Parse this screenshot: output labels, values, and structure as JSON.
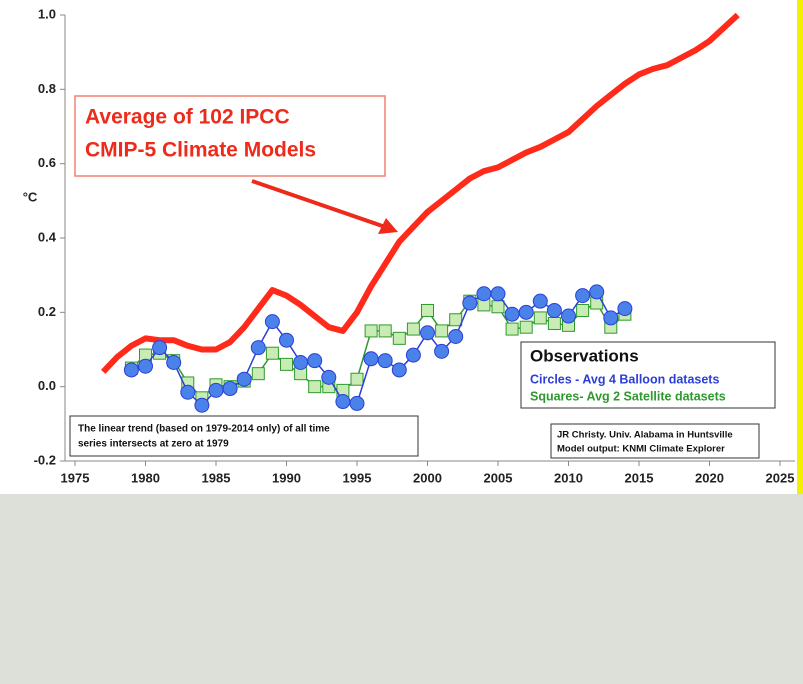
{
  "chart_data": {
    "type": "line",
    "ylabel": "°C",
    "annotation": [
      "Average of 102 IPCC",
      "CMIP-5 Climate Models"
    ],
    "legend_title": "Observations",
    "note": [
      "The linear trend (based on 1979-2014 only) of all time",
      "series intersects at zero at 1979"
    ],
    "credit": [
      "JR Christy. Univ. Alabama in Huntsville",
      "Model output: KNMI Climate Explorer"
    ],
    "xlim": [
      1975,
      2025
    ],
    "xticks": [
      1975,
      1980,
      1985,
      1990,
      1995,
      2000,
      2005,
      2010,
      2015,
      2020,
      2025
    ],
    "ylim": [
      -0.2,
      1.0
    ],
    "yticks": [
      {
        "value": 1.0,
        "label": "1.0"
      },
      0.8,
      0.6,
      0.4,
      0.2,
      {
        "value": 0.0,
        "label": "0.0"
      },
      -0.2
    ],
    "series": [
      {
        "color": "#ff2a1a",
        "marker": "none",
        "x": [
          1977,
          1978,
          1979,
          1980,
          1981,
          1982,
          1983,
          1984,
          1985,
          1986,
          1987,
          1988,
          1989,
          1990,
          1991,
          1992,
          1993,
          1994,
          1995,
          1996,
          1997,
          1998,
          1999,
          2000,
          2001,
          2002,
          2003,
          2004,
          2005,
          2006,
          2007,
          2008,
          2009,
          2010,
          2011,
          2012,
          2013,
          2014,
          2015,
          2016,
          2017,
          2018,
          2019,
          2020,
          2021,
          2022
        ],
        "values": [
          0.04,
          0.08,
          0.11,
          0.13,
          0.125,
          0.125,
          0.11,
          0.1,
          0.1,
          0.12,
          0.16,
          0.21,
          0.26,
          0.245,
          0.22,
          0.19,
          0.16,
          0.15,
          0.2,
          0.27,
          0.33,
          0.39,
          0.43,
          0.47,
          0.5,
          0.53,
          0.56,
          0.58,
          0.59,
          0.61,
          0.63,
          0.645,
          0.665,
          0.685,
          0.72,
          0.755,
          0.785,
          0.815,
          0.84,
          0.855,
          0.865,
          0.885,
          0.905,
          0.93,
          0.965,
          1.0
        ]
      },
      {
        "name": "Squares- Avg 2 Satellite datasets",
        "color": "#2e9a2e",
        "marker": "square",
        "x": [
          1979,
          1980,
          1981,
          1982,
          1983,
          1984,
          1985,
          1986,
          1987,
          1988,
          1989,
          1990,
          1991,
          1992,
          1993,
          1994,
          1995,
          1996,
          1997,
          1998,
          1999,
          2000,
          2001,
          2002,
          2003,
          2004,
          2005,
          2006,
          2007,
          2008,
          2009,
          2010,
          2011,
          2012,
          2013,
          2014
        ],
        "values": [
          0.05,
          0.085,
          0.09,
          0.07,
          0.01,
          -0.03,
          0.005,
          0.0,
          0.015,
          0.035,
          0.09,
          0.06,
          0.035,
          0.0,
          0.0,
          -0.01,
          0.02,
          0.15,
          0.15,
          0.13,
          0.155,
          0.205,
          0.15,
          0.18,
          0.23,
          0.22,
          0.215,
          0.155,
          0.16,
          0.185,
          0.17,
          0.165,
          0.205,
          0.225,
          0.16,
          0.195
        ]
      },
      {
        "name": "Circles - Avg 4 Balloon datasets",
        "color": "#2b3fd6",
        "marker": "circle",
        "x": [
          1979,
          1980,
          1981,
          1982,
          1983,
          1984,
          1985,
          1986,
          1987,
          1988,
          1989,
          1990,
          1991,
          1992,
          1993,
          1994,
          1995,
          1996,
          1997,
          1998,
          1999,
          2000,
          2001,
          2002,
          2003,
          2004,
          2005,
          2006,
          2007,
          2008,
          2009,
          2010,
          2011,
          2012,
          2013,
          2014
        ],
        "values": [
          0.045,
          0.055,
          0.105,
          0.065,
          -0.015,
          -0.05,
          -0.01,
          -0.005,
          0.02,
          0.105,
          0.175,
          0.125,
          0.065,
          0.07,
          0.025,
          -0.04,
          -0.045,
          0.075,
          0.07,
          0.045,
          0.085,
          0.145,
          0.095,
          0.135,
          0.225,
          0.25,
          0.25,
          0.195,
          0.2,
          0.23,
          0.205,
          0.19,
          0.245,
          0.255,
          0.185,
          0.21
        ]
      }
    ]
  }
}
